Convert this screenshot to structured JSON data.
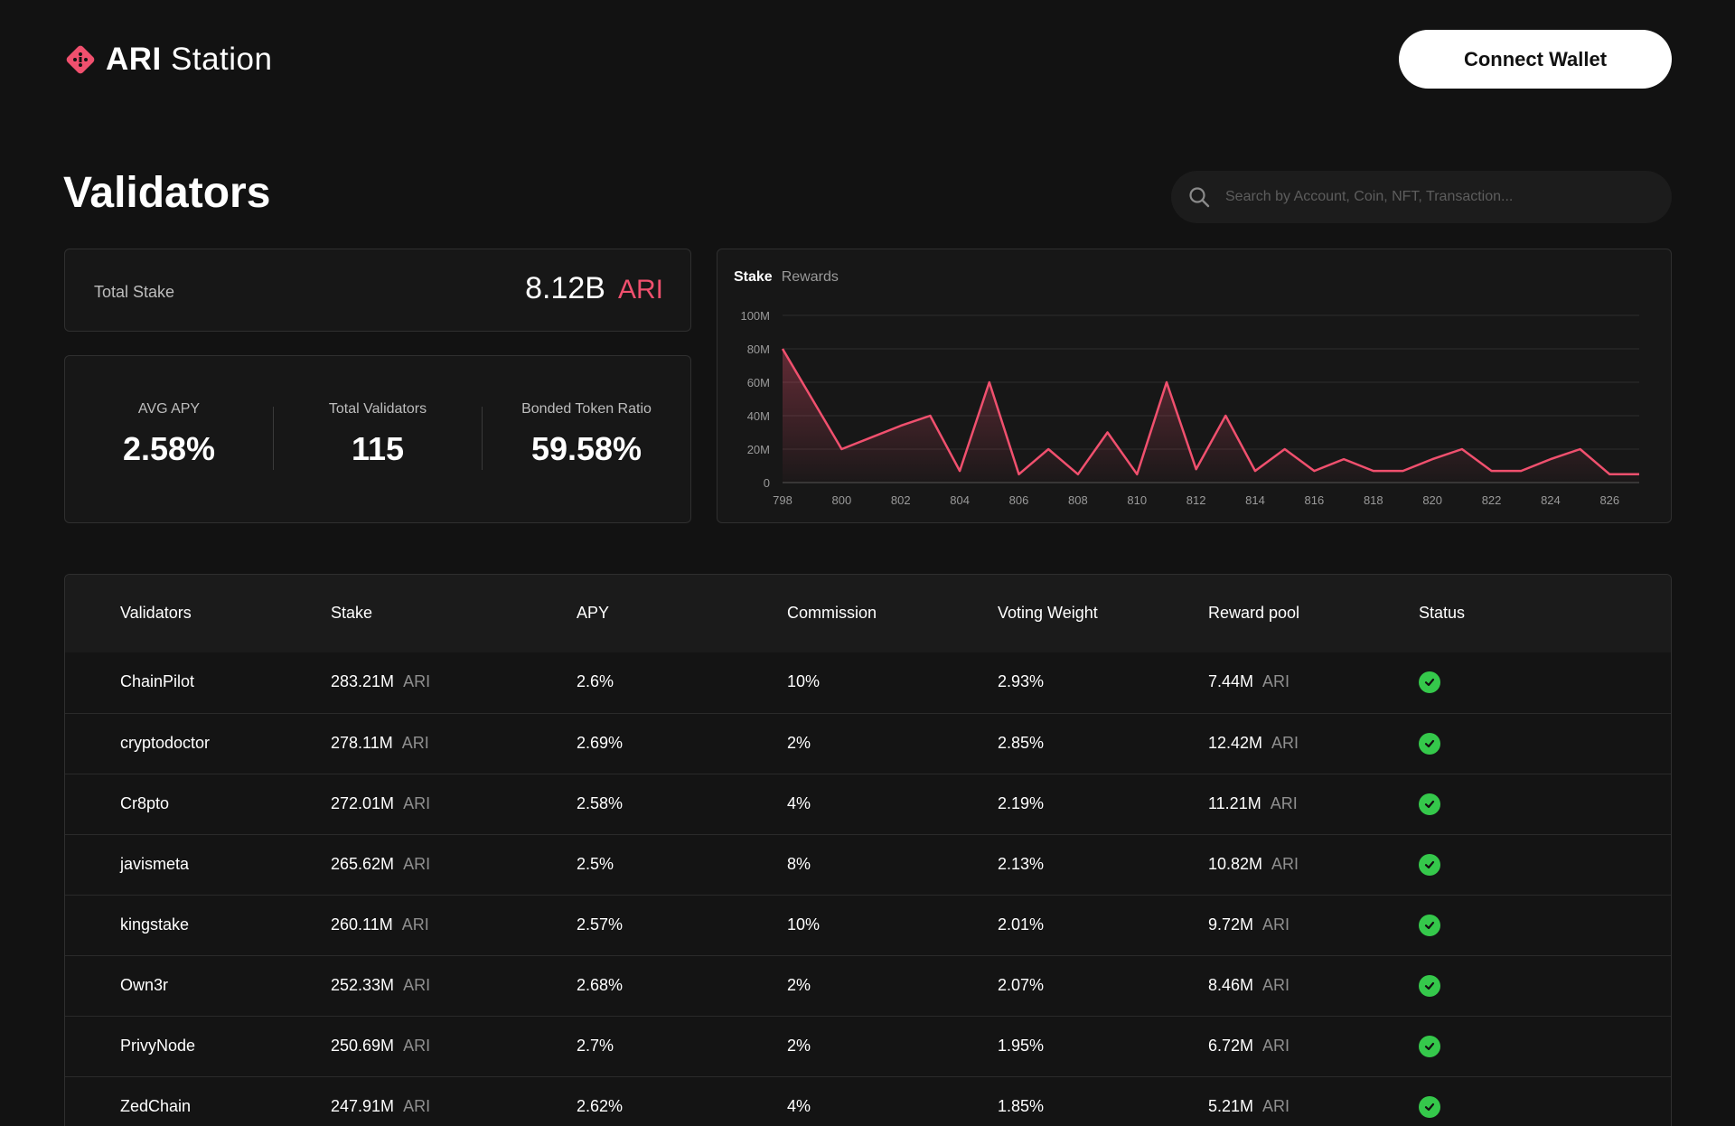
{
  "app": {
    "brand": "ARI",
    "brand_suffix": "Station",
    "connect_label": "Connect Wallet"
  },
  "page": {
    "title": "Validators"
  },
  "search": {
    "placeholder": "Search by Account, Coin, NFT, Transaction..."
  },
  "summary": {
    "total_stake_label": "Total Stake",
    "total_stake_value": "8.12B",
    "total_stake_unit": "ARI",
    "metrics": [
      {
        "label": "AVG APY",
        "value": "2.58%"
      },
      {
        "label": "Total Validators",
        "value": "115"
      },
      {
        "label": "Bonded Token Ratio",
        "value": "59.58%"
      }
    ]
  },
  "chart": {
    "tabs": [
      "Stake",
      "Rewards"
    ],
    "active_tab": "Stake",
    "accent": "#f0506e"
  },
  "chart_data": {
    "type": "area",
    "x": [
      798,
      799,
      800,
      801,
      802,
      803,
      804,
      805,
      806,
      807,
      808,
      809,
      810,
      811,
      812,
      813,
      814,
      815,
      816,
      817,
      818,
      819,
      820,
      821,
      822,
      823,
      824,
      825,
      826,
      827
    ],
    "series": [
      {
        "values": [
          80,
          50,
          20,
          27,
          34,
          40,
          7,
          60,
          5,
          20,
          5,
          30,
          5,
          60,
          8,
          40,
          7,
          20,
          7,
          14,
          7,
          7,
          14,
          20,
          7,
          7,
          14,
          20,
          5,
          5
        ]
      }
    ],
    "x_tick_labels": [
      "798",
      "800",
      "802",
      "804",
      "806",
      "808",
      "810",
      "812",
      "814",
      "816",
      "818",
      "820",
      "822",
      "824",
      "826"
    ],
    "y_tick_labels": [
      "0",
      "20M",
      "40M",
      "60M",
      "80M",
      "100M"
    ],
    "ylim": [
      0,
      100
    ],
    "y_unit": "M",
    "grid": true
  },
  "table": {
    "headers": [
      "Validators",
      "Stake",
      "APY",
      "Commission",
      "Voting Weight",
      "Reward pool",
      "Status"
    ],
    "unit": "ARI",
    "status_color": "#35c84b",
    "rows": [
      {
        "name": "ChainPilot",
        "stake": "283.21M",
        "apy": "2.6%",
        "commission": "10%",
        "voting": "2.93%",
        "reward": "7.44M"
      },
      {
        "name": "cryptodoctor",
        "stake": "278.11M",
        "apy": "2.69%",
        "commission": "2%",
        "voting": "2.85%",
        "reward": "12.42M"
      },
      {
        "name": "Cr8pto",
        "stake": "272.01M",
        "apy": "2.58%",
        "commission": "4%",
        "voting": "2.19%",
        "reward": "11.21M"
      },
      {
        "name": "javismeta",
        "stake": "265.62M",
        "apy": "2.5%",
        "commission": "8%",
        "voting": "2.13%",
        "reward": "10.82M"
      },
      {
        "name": "kingstake",
        "stake": "260.11M",
        "apy": "2.57%",
        "commission": "10%",
        "voting": "2.01%",
        "reward": "9.72M"
      },
      {
        "name": "Own3r",
        "stake": "252.33M",
        "apy": "2.68%",
        "commission": "2%",
        "voting": "2.07%",
        "reward": "8.46M"
      },
      {
        "name": "PrivyNode",
        "stake": "250.69M",
        "apy": "2.7%",
        "commission": "2%",
        "voting": "1.95%",
        "reward": "6.72M"
      },
      {
        "name": "ZedChain",
        "stake": "247.91M",
        "apy": "2.62%",
        "commission": "4%",
        "voting": "1.85%",
        "reward": "5.21M"
      }
    ]
  }
}
